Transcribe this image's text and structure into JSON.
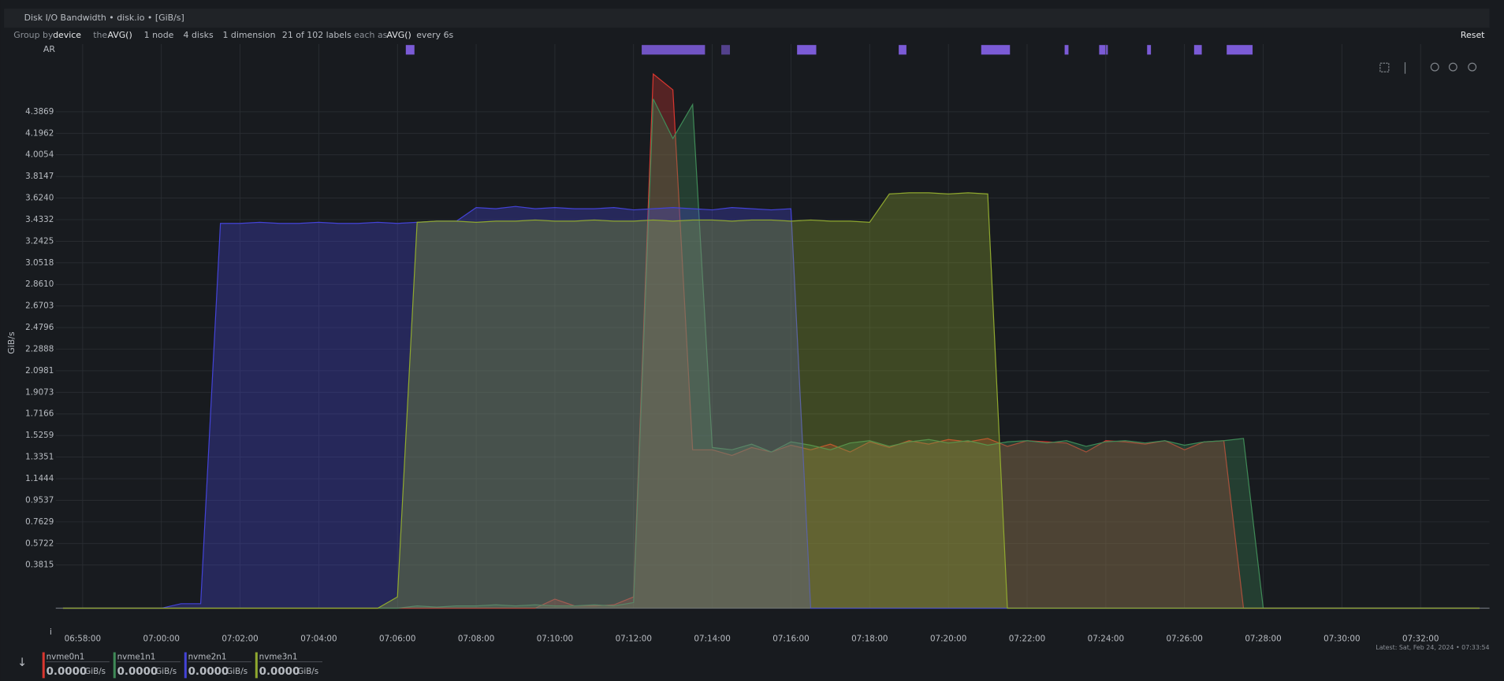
{
  "header": {
    "title": "Disk I/O Bandwidth • disk.io • [GiB/s]",
    "reset": "Reset",
    "toolbar": [
      "Group by",
      "device",
      "the",
      "AVG()",
      "1 node",
      "4 disks",
      "1 dimension",
      "21 of 102 labels",
      "each as",
      "AVG()",
      "every 6s"
    ],
    "annotation_track": "AR",
    "axis_marker": "i",
    "latest": "Latest: Sat, Feb 24, 2024 • 07:33:54"
  },
  "legend": {
    "values": [
      "0.0000",
      "0.0000",
      "0.0000",
      "0.0000"
    ],
    "unit": "GiB/s"
  },
  "chart_data": {
    "type": "area",
    "y_label": "GiB/s",
    "grid": true,
    "xlim": [
      "06:57:19",
      "07:33:45"
    ],
    "xticks": [
      "06:58:00",
      "07:00:00",
      "07:02:00",
      "07:04:00",
      "07:06:00",
      "07:08:00",
      "07:10:00",
      "07:12:00",
      "07:14:00",
      "07:16:00",
      "07:18:00",
      "07:20:00",
      "07:22:00",
      "07:24:00",
      "07:26:00",
      "07:28:00",
      "07:30:00",
      "07:32:00"
    ],
    "ylim": [
      0,
      4.9
    ],
    "yticks": [
      0.3815,
      0.5722,
      0.7629,
      0.9537,
      1.1444,
      1.3351,
      1.5259,
      1.7166,
      1.9073,
      2.0981,
      2.2888,
      2.4796,
      2.6703,
      {
        "value": 2.861,
        "label": "2.8610"
      },
      3.0518,
      3.2425,
      3.4332,
      {
        "value": 3.624,
        "label": "3.6240"
      },
      3.8147,
      4.0054,
      4.1962,
      4.3869
    ],
    "x": [
      "06:57:30",
      "06:58:00",
      "06:58:30",
      "06:59:00",
      "06:59:30",
      "07:00:00",
      "07:00:30",
      "07:01:00",
      "07:01:30",
      "07:02:00",
      "07:02:30",
      "07:03:00",
      "07:03:30",
      "07:04:00",
      "07:04:30",
      "07:05:00",
      "07:05:30",
      "07:06:00",
      "07:06:30",
      "07:07:00",
      "07:07:30",
      "07:08:00",
      "07:08:30",
      "07:09:00",
      "07:09:30",
      "07:10:00",
      "07:10:30",
      "07:11:00",
      "07:11:30",
      "07:12:00",
      "07:12:30",
      "07:13:00",
      "07:13:30",
      "07:14:00",
      "07:14:30",
      "07:15:00",
      "07:15:30",
      "07:16:00",
      "07:16:30",
      "07:17:00",
      "07:17:30",
      "07:18:00",
      "07:18:30",
      "07:19:00",
      "07:19:30",
      "07:20:00",
      "07:20:30",
      "07:21:00",
      "07:21:30",
      "07:22:00",
      "07:22:30",
      "07:23:00",
      "07:23:30",
      "07:24:00",
      "07:24:30",
      "07:25:00",
      "07:25:30",
      "07:26:00",
      "07:26:30",
      "07:27:00",
      "07:27:30",
      "07:28:00",
      "07:28:30",
      "07:29:00",
      "07:29:30",
      "07:30:00",
      "07:30:30",
      "07:31:00",
      "07:31:30",
      "07:32:00",
      "07:32:30",
      "07:33:00",
      "07:33:30"
    ],
    "series": [
      {
        "name": "nvme0n1",
        "color": "#d8362f",
        "values": [
          0,
          0,
          0,
          0,
          0,
          0,
          0,
          0,
          0,
          0,
          0,
          0,
          0,
          0,
          0,
          0,
          0,
          0,
          0,
          0,
          0,
          0,
          0,
          0,
          0,
          0.08,
          0.02,
          0.02,
          0.03,
          0.1,
          4.72,
          4.58,
          1.4,
          1.4,
          1.35,
          1.42,
          1.38,
          1.44,
          1.4,
          1.45,
          1.38,
          1.47,
          1.42,
          1.48,
          1.45,
          1.49,
          1.47,
          1.5,
          1.43,
          1.48,
          1.47,
          1.46,
          1.38,
          1.48,
          1.47,
          1.45,
          1.48,
          1.4,
          1.47,
          1.48,
          0,
          0,
          0,
          0,
          0,
          0,
          0,
          0,
          0,
          0,
          0,
          0,
          0
        ]
      },
      {
        "name": "nvme1n1",
        "color": "#3f8a57",
        "values": [
          0,
          0,
          0,
          0,
          0,
          0,
          0,
          0,
          0,
          0,
          0,
          0,
          0,
          0,
          0,
          0,
          0,
          0,
          0.02,
          0.01,
          0.02,
          0.02,
          0.03,
          0.02,
          0.03,
          0.02,
          0.02,
          0.03,
          0.02,
          0.05,
          4.5,
          4.15,
          4.45,
          1.42,
          1.4,
          1.45,
          1.38,
          1.47,
          1.44,
          1.4,
          1.46,
          1.48,
          1.43,
          1.47,
          1.49,
          1.46,
          1.48,
          1.44,
          1.47,
          1.48,
          1.46,
          1.48,
          1.43,
          1.47,
          1.48,
          1.46,
          1.48,
          1.44,
          1.47,
          1.48,
          1.5,
          0,
          0,
          0,
          0,
          0,
          0,
          0,
          0,
          0,
          0,
          0,
          0
        ]
      },
      {
        "name": "nvme2n1",
        "color": "#4343d6",
        "values": [
          0,
          0,
          0,
          0,
          0,
          0,
          0.04,
          0.04,
          3.4,
          3.4,
          3.41,
          3.4,
          3.4,
          3.41,
          3.4,
          3.4,
          3.41,
          3.4,
          3.41,
          3.42,
          3.42,
          3.54,
          3.53,
          3.55,
          3.53,
          3.54,
          3.53,
          3.53,
          3.54,
          3.52,
          3.53,
          3.54,
          3.53,
          3.52,
          3.54,
          3.53,
          3.52,
          3.53,
          0,
          0,
          0,
          0,
          0,
          0,
          0,
          0,
          0,
          0,
          0,
          0,
          0,
          0,
          0,
          0,
          0,
          0,
          0,
          0,
          0,
          0,
          0,
          0,
          0,
          0,
          0,
          0,
          0,
          0,
          0,
          0,
          0,
          0,
          0
        ]
      },
      {
        "name": "nvme3n1",
        "color": "#8fa82f",
        "values": [
          0,
          0,
          0,
          0,
          0,
          0,
          0,
          0,
          0,
          0,
          0,
          0,
          0,
          0,
          0,
          0,
          0,
          0.1,
          3.41,
          3.42,
          3.42,
          3.41,
          3.42,
          3.42,
          3.43,
          3.42,
          3.42,
          3.43,
          3.42,
          3.42,
          3.43,
          3.42,
          3.43,
          3.43,
          3.42,
          3.43,
          3.43,
          3.42,
          3.43,
          3.42,
          3.42,
          3.41,
          3.66,
          3.67,
          3.67,
          3.66,
          3.67,
          3.66,
          0,
          0,
          0,
          0,
          0,
          0,
          0,
          0,
          0,
          0,
          0,
          0,
          0,
          0,
          0,
          0,
          0,
          0,
          0,
          0,
          0,
          0,
          0,
          0,
          0
        ]
      }
    ]
  }
}
